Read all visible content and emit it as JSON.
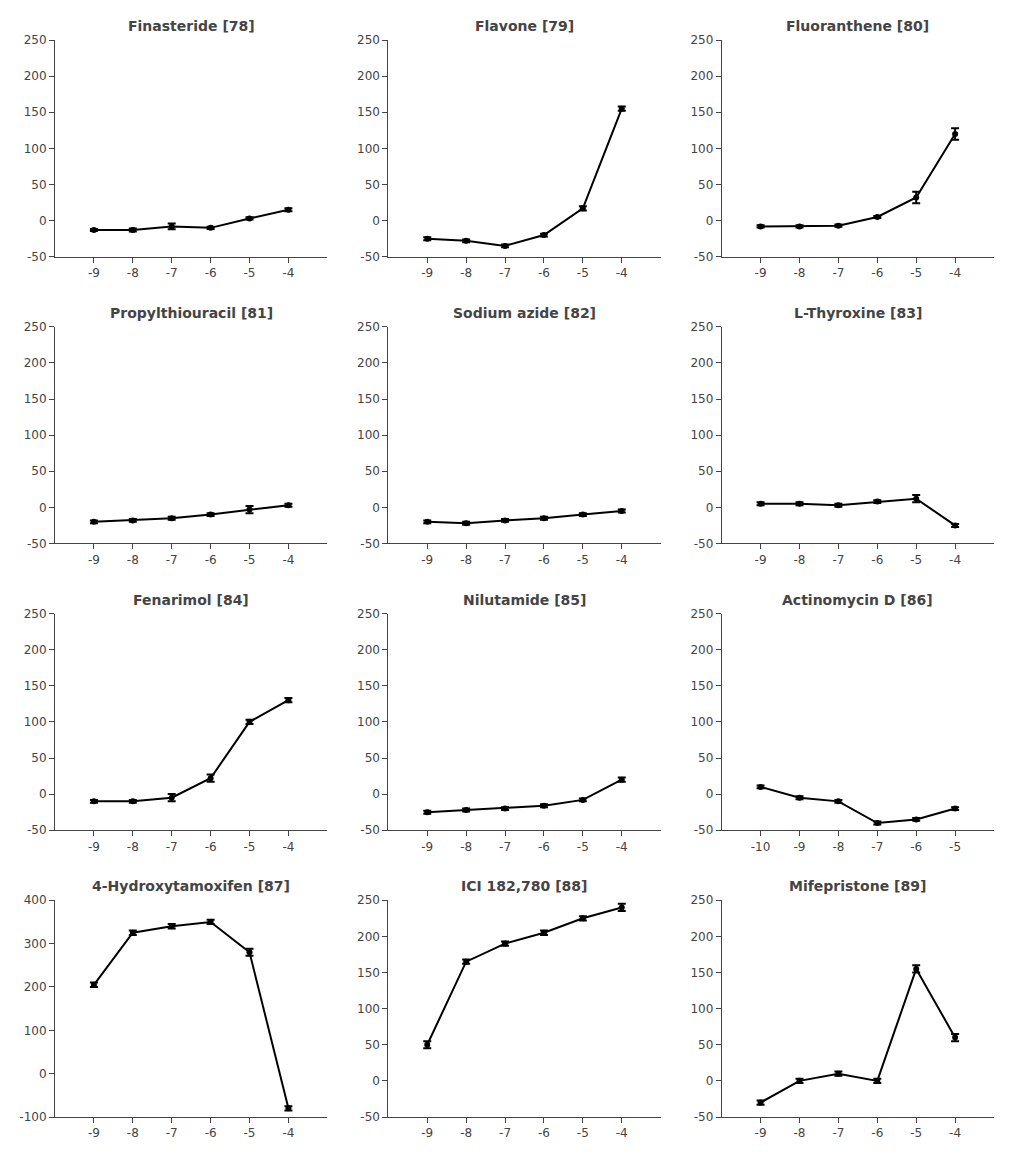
{
  "chart_data": [
    {
      "type": "line",
      "title": "Finasteride [78]",
      "x": [
        -9,
        -8,
        -7,
        -6,
        -5,
        -4
      ],
      "values": [
        -13,
        -13,
        -8,
        -10,
        3,
        15
      ],
      "yerr": [
        1.5,
        2,
        4,
        1.5,
        1.5,
        2
      ],
      "xlim": [
        -10,
        -3
      ],
      "ylim": [
        -50,
        250
      ],
      "xticks": [
        -9,
        -8,
        -7,
        -6,
        -5,
        -4
      ],
      "yticks": [
        -50,
        0,
        50,
        100,
        150,
        200,
        250
      ],
      "color": "black",
      "marker": "circle",
      "line_style": "solid",
      "grid": false
    },
    {
      "type": "line",
      "title": "Flavone [79]",
      "x": [
        -9,
        -8,
        -7,
        -6,
        -5,
        -4
      ],
      "values": [
        -25,
        -28,
        -35,
        -20,
        17,
        155
      ],
      "yerr": [
        2,
        2,
        2,
        2,
        3,
        3
      ],
      "xlim": [
        -10,
        -3
      ],
      "ylim": [
        -50,
        250
      ],
      "xticks": [
        -9,
        -8,
        -7,
        -6,
        -5,
        -4
      ],
      "yticks": [
        -50,
        0,
        50,
        100,
        150,
        200,
        250
      ],
      "color": "black",
      "marker": "circle",
      "line_style": "solid",
      "grid": false
    },
    {
      "type": "line",
      "title": "Fluoranthene [80]",
      "x": [
        -9,
        -8,
        -7,
        -6,
        -5,
        -4
      ],
      "values": [
        -8,
        -8,
        -7,
        5,
        32,
        120
      ],
      "yerr": [
        1.5,
        1.5,
        1.5,
        1.5,
        8,
        8
      ],
      "xlim": [
        -10,
        -3
      ],
      "ylim": [
        -50,
        250
      ],
      "xticks": [
        -9,
        -8,
        -7,
        -6,
        -5,
        -4
      ],
      "yticks": [
        -50,
        0,
        50,
        100,
        150,
        200,
        250
      ],
      "color": "black",
      "marker": "circle",
      "line_style": "solid",
      "grid": false
    },
    {
      "type": "line",
      "title": "Propylthiouracil [81]",
      "x": [
        -9,
        -8,
        -7,
        -6,
        -5,
        -4
      ],
      "values": [
        -20,
        -18,
        -15,
        -10,
        -3,
        3
      ],
      "yerr": [
        2,
        2,
        2,
        2,
        5,
        2
      ],
      "xlim": [
        -10,
        -3
      ],
      "ylim": [
        -50,
        250
      ],
      "xticks": [
        -9,
        -8,
        -7,
        -6,
        -5,
        -4
      ],
      "yticks": [
        -50,
        0,
        50,
        100,
        150,
        200,
        250
      ],
      "color": "black",
      "marker": "circle",
      "line_style": "solid",
      "grid": false
    },
    {
      "type": "line",
      "title": "Sodium azide [82]",
      "x": [
        -9,
        -8,
        -7,
        -6,
        -5,
        -4
      ],
      "values": [
        -20,
        -22,
        -18,
        -15,
        -10,
        -5
      ],
      "yerr": [
        2,
        2,
        2,
        2,
        2,
        2
      ],
      "xlim": [
        -10,
        -3
      ],
      "ylim": [
        -50,
        250
      ],
      "xticks": [
        -9,
        -8,
        -7,
        -6,
        -5,
        -4
      ],
      "yticks": [
        -50,
        0,
        50,
        100,
        150,
        200,
        250
      ],
      "color": "black",
      "marker": "circle",
      "line_style": "solid",
      "grid": false
    },
    {
      "type": "line",
      "title": "L-Thyroxine [83]",
      "x": [
        -9,
        -8,
        -7,
        -6,
        -5,
        -4
      ],
      "values": [
        5,
        5,
        3,
        8,
        12,
        -25
      ],
      "yerr": [
        2,
        2,
        2,
        2,
        5,
        2
      ],
      "xlim": [
        -10,
        -3
      ],
      "ylim": [
        -50,
        250
      ],
      "xticks": [
        -9,
        -8,
        -7,
        -6,
        -5,
        -4
      ],
      "yticks": [
        -50,
        0,
        50,
        100,
        150,
        200,
        250
      ],
      "color": "black",
      "marker": "circle",
      "line_style": "solid",
      "grid": false
    },
    {
      "type": "line",
      "title": "Fenarimol [84]",
      "x": [
        -9,
        -8,
        -7,
        -6,
        -5,
        -4
      ],
      "values": [
        -10,
        -10,
        -5,
        22,
        100,
        130
      ],
      "yerr": [
        2,
        2,
        5,
        5,
        3,
        3
      ],
      "xlim": [
        -10,
        -3
      ],
      "ylim": [
        -50,
        250
      ],
      "xticks": [
        -9,
        -8,
        -7,
        -6,
        -5,
        -4
      ],
      "yticks": [
        -50,
        0,
        50,
        100,
        150,
        200,
        250
      ],
      "color": "black",
      "marker": "circle",
      "line_style": "solid",
      "grid": false
    },
    {
      "type": "line",
      "title": "Nilutamide [85]",
      "x": [
        -9,
        -8,
        -7,
        -6,
        -5,
        -4
      ],
      "values": [
        -25,
        -22,
        -20,
        -16,
        -8,
        20
      ],
      "yerr": [
        2,
        2,
        2,
        2,
        2,
        3
      ],
      "xlim": [
        -10,
        -3
      ],
      "ylim": [
        -50,
        250
      ],
      "xticks": [
        -9,
        -8,
        -7,
        -6,
        -5,
        -4
      ],
      "yticks": [
        -50,
        0,
        50,
        100,
        150,
        200,
        250
      ],
      "color": "black",
      "marker": "circle",
      "line_style": "solid",
      "grid": false
    },
    {
      "type": "line",
      "title": "Actinomycin D [86]",
      "x": [
        -10,
        -9,
        -8,
        -7,
        -6,
        -5
      ],
      "values": [
        10,
        -5,
        -10,
        -40,
        -35,
        -20
      ],
      "yerr": [
        2,
        2,
        2,
        2,
        2,
        2
      ],
      "xlim": [
        -11,
        -4
      ],
      "ylim": [
        -50,
        250
      ],
      "xticks": [
        -10,
        -9,
        -8,
        -7,
        -6,
        -5
      ],
      "yticks": [
        -50,
        0,
        50,
        100,
        150,
        200,
        250
      ],
      "color": "black",
      "marker": "circle",
      "line_style": "solid",
      "grid": false
    },
    {
      "type": "line",
      "title": "4-Hydroxytamoxifen [87]",
      "x": [
        -9,
        -8,
        -7,
        -6,
        -5,
        -4
      ],
      "values": [
        205,
        325,
        340,
        350,
        280,
        -80
      ],
      "yerr": [
        5,
        5,
        5,
        5,
        8,
        5
      ],
      "xlim": [
        -10,
        -3
      ],
      "ylim": [
        -100,
        400
      ],
      "xticks": [
        -9,
        -8,
        -7,
        -6,
        -5,
        -4
      ],
      "yticks": [
        -100,
        0,
        100,
        200,
        300,
        400
      ],
      "color": "black",
      "marker": "circle",
      "line_style": "solid",
      "grid": false
    },
    {
      "type": "line",
      "title": "ICI 182,780 [88]",
      "x": [
        -9,
        -8,
        -7,
        -6,
        -5,
        -4
      ],
      "values": [
        50,
        165,
        190,
        205,
        225,
        240
      ],
      "yerr": [
        5,
        3,
        3,
        3,
        3,
        5
      ],
      "xlim": [
        -10,
        -3
      ],
      "ylim": [
        -50,
        250
      ],
      "xticks": [
        -9,
        -8,
        -7,
        -6,
        -5,
        -4
      ],
      "yticks": [
        -50,
        0,
        50,
        100,
        150,
        200,
        250
      ],
      "color": "black",
      "marker": "circle",
      "line_style": "solid",
      "grid": false
    },
    {
      "type": "line",
      "title": "Mifepristone [89]",
      "x": [
        -9,
        -8,
        -7,
        -6,
        -5,
        -4
      ],
      "values": [
        -30,
        0,
        10,
        0,
        155,
        60
      ],
      "yerr": [
        3,
        3,
        3,
        3,
        5,
        5
      ],
      "xlim": [
        -10,
        -3
      ],
      "ylim": [
        -50,
        250
      ],
      "xticks": [
        -9,
        -8,
        -7,
        -6,
        -5,
        -4
      ],
      "yticks": [
        -50,
        0,
        50,
        100,
        150,
        200,
        250
      ],
      "color": "black",
      "marker": "circle",
      "line_style": "solid",
      "grid": false
    }
  ]
}
